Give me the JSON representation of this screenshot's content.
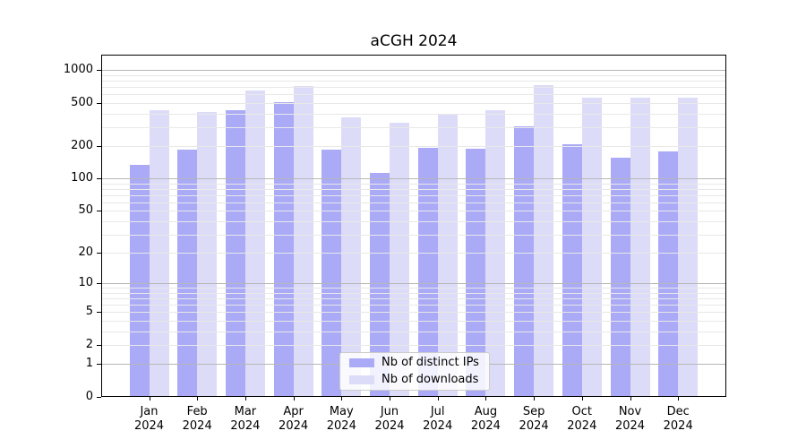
{
  "title": "aCGH 2024",
  "chart_data": {
    "type": "bar",
    "title": "aCGH 2024",
    "scale": "log1p",
    "categories": [
      "Jan",
      "Feb",
      "Mar",
      "Apr",
      "May",
      "Jun",
      "Jul",
      "Aug",
      "Sep",
      "Oct",
      "Nov",
      "Dec"
    ],
    "year_label": "2024",
    "series": [
      {
        "key": "distinct-ips",
        "name": "Nb of distinct IPs",
        "color": "#aaaaf7",
        "values": [
          135,
          187,
          430,
          505,
          185,
          112,
          193,
          190,
          305,
          208,
          156,
          179
        ]
      },
      {
        "key": "downloads",
        "name": "Nb of downloads",
        "color": "#dcdcf8",
        "values": [
          430,
          410,
          655,
          710,
          370,
          330,
          390,
          430,
          735,
          557,
          562,
          557
        ]
      }
    ],
    "y_ticks": [
      {
        "value": 1000,
        "label": "1000"
      },
      {
        "value": 500,
        "label": "500"
      },
      {
        "value": 200,
        "label": "200"
      },
      {
        "value": 100,
        "label": "100"
      },
      {
        "value": 50,
        "label": "50"
      },
      {
        "value": 20,
        "label": "20"
      },
      {
        "value": 10,
        "label": "10"
      },
      {
        "value": 5,
        "label": "5"
      },
      {
        "value": 2,
        "label": "2"
      },
      {
        "value": 1,
        "label": "1"
      },
      {
        "value": 0,
        "label": "0"
      }
    ],
    "major_grid_values": [
      1,
      10,
      100,
      1000
    ],
    "minor_grid_bases": [
      1,
      10,
      100
    ],
    "ylim": [
      0,
      1385
    ],
    "grid": true,
    "legend_position": "bottom-center",
    "colors": {
      "axis": "#000000",
      "grid_major": "#b6b6b6",
      "grid_minor": "#e8e8e8"
    }
  }
}
